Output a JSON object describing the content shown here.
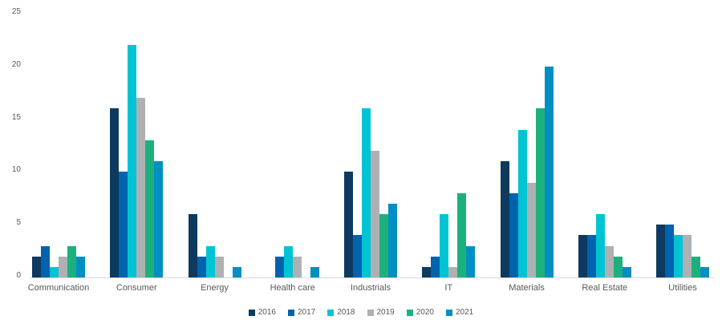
{
  "chart_data": {
    "type": "bar",
    "title": "",
    "xlabel": "",
    "ylabel": "",
    "ylim": [
      0,
      25
    ],
    "yticks": [
      0,
      5,
      10,
      15,
      20,
      25
    ],
    "grid": false,
    "legend_position": "bottom",
    "axis_text_color": "#595959",
    "baseline_color": "#d9d9d9",
    "categories": [
      "Communication",
      "Consumer",
      "Energy",
      "Health care",
      "Industrials",
      "IT",
      "Materials",
      "Real Estate",
      "Utilities"
    ],
    "series": [
      {
        "name": "2016",
        "color": "#0d3a5e",
        "values": [
          2,
          16,
          6,
          0,
          10,
          1,
          11,
          4,
          5
        ]
      },
      {
        "name": "2017",
        "color": "#0063ae",
        "values": [
          3,
          10,
          2,
          2,
          4,
          2,
          8,
          4,
          5
        ]
      },
      {
        "name": "2018",
        "color": "#00c4d4",
        "values": [
          1,
          22,
          3,
          3,
          16,
          6,
          14,
          6,
          4
        ]
      },
      {
        "name": "2019",
        "color": "#aeb1b3",
        "values": [
          2,
          17,
          2,
          2,
          12,
          1,
          9,
          3,
          4
        ]
      },
      {
        "name": "2020",
        "color": "#1cb17c",
        "values": [
          3,
          13,
          0,
          0,
          6,
          8,
          16,
          2,
          2
        ]
      },
      {
        "name": "2021",
        "color": "#008fc2",
        "values": [
          2,
          11,
          1,
          1,
          7,
          3,
          20,
          1,
          1
        ]
      }
    ]
  },
  "layout_note": ""
}
